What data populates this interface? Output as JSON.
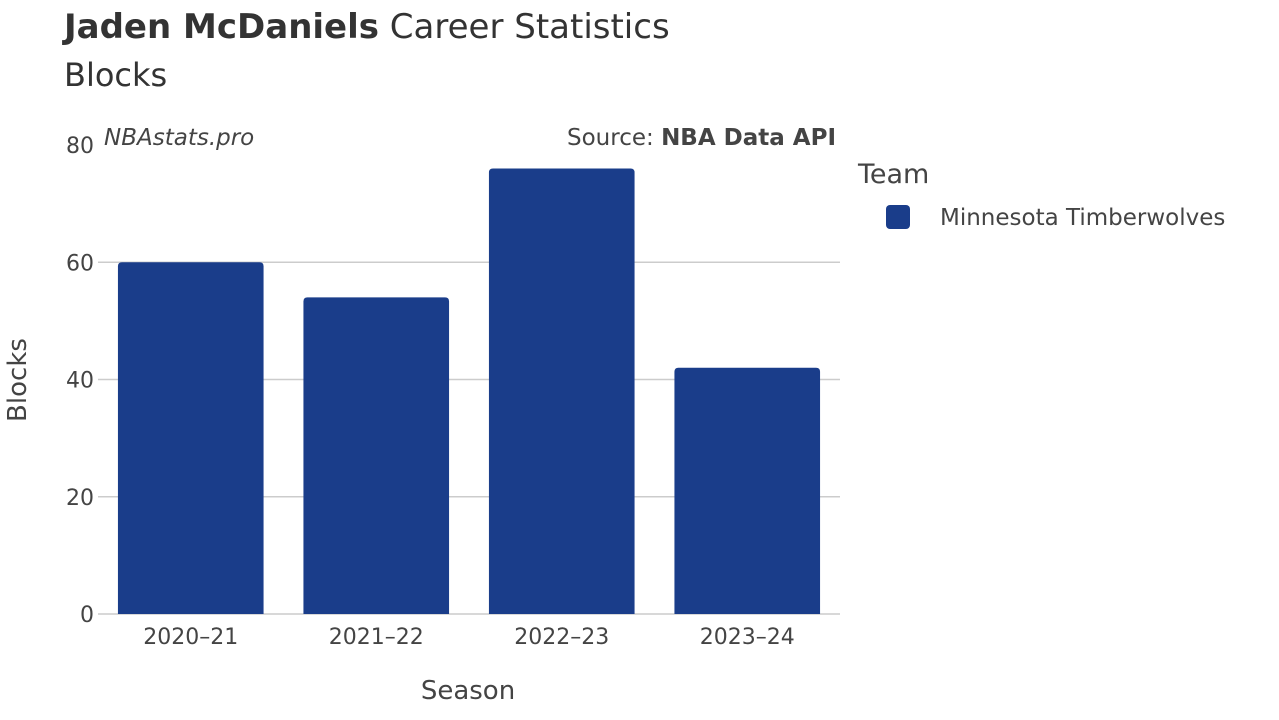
{
  "header": {
    "player_name": "Jaden McDaniels",
    "title_rest": " Career Statistics",
    "subtitle": "Blocks",
    "watermark": "NBAstats.pro",
    "source_label": "Source: ",
    "source_name": "NBA Data API"
  },
  "chart_data": {
    "type": "bar",
    "title": "Jaden McDaniels Career Statistics",
    "subtitle": "Blocks",
    "xlabel": "Season",
    "ylabel": "Blocks",
    "categories": [
      "2020–21",
      "2021–22",
      "2022–23",
      "2023–24"
    ],
    "series": [
      {
        "name": "Minnesota Timberwolves",
        "values": [
          60,
          54,
          76,
          42
        ],
        "color": "#1a3d8a"
      }
    ],
    "ylim": [
      0,
      80
    ],
    "yticks": [
      0,
      20,
      40,
      60,
      80
    ],
    "grid": true,
    "legend": {
      "title": "Team",
      "position": "right"
    }
  }
}
